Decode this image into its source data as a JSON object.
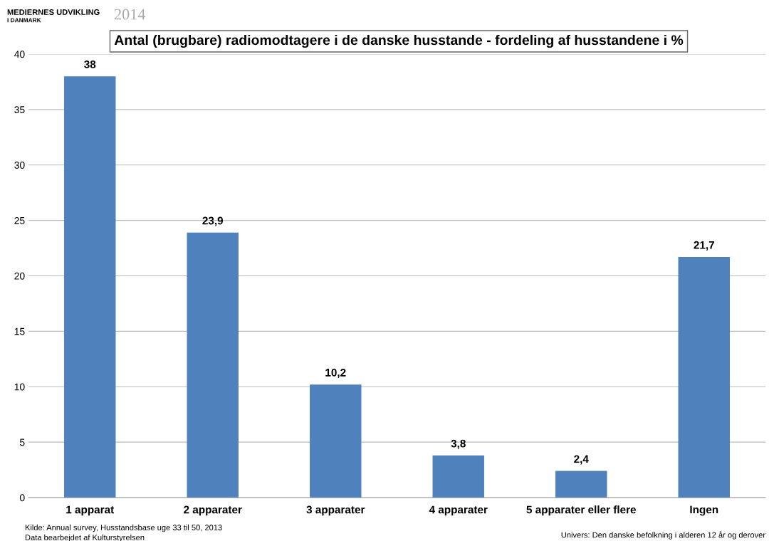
{
  "chart_data": {
    "type": "bar",
    "title": "Antal (brugbare) radiomodtagere i de danske husstande - fordeling af husstandene i %",
    "categories": [
      "1 apparat",
      "2 apparater",
      "3 apparater",
      "4 apparater",
      "5 apparater eller flere",
      "Ingen"
    ],
    "values": [
      38,
      23.9,
      10.2,
      3.8,
      2.4,
      21.7
    ],
    "value_labels": [
      "38",
      "23,9",
      "10,2",
      "3,8",
      "2,4",
      "21,7"
    ],
    "color": "#4f81bd",
    "ylim": [
      0,
      40
    ],
    "yticks": [
      0,
      5,
      10,
      15,
      20,
      25,
      30,
      35,
      40
    ],
    "grid": "y",
    "annotations": [
      "MEDIERNES UDVIKLING",
      "I DANMARK",
      "2014",
      "Kilde: Annual survey, Husstandsbase uge 33 til 50, 2013",
      "Data bearbejdet af Kulturstyrelsen",
      "Univers: Den danske befolkning i alderen 12 år og derover"
    ]
  }
}
